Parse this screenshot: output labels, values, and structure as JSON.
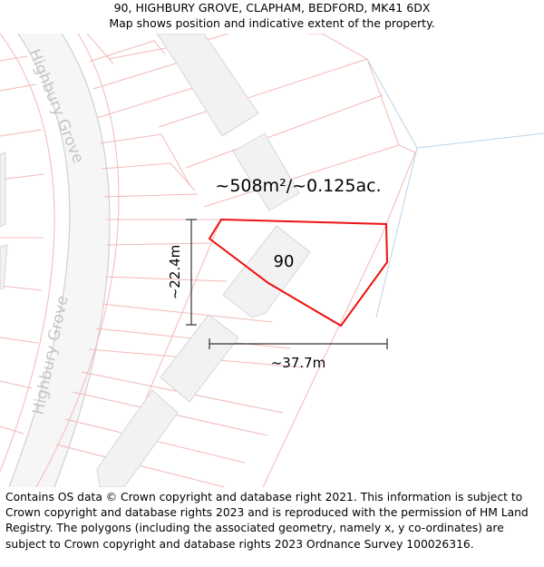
{
  "header": {
    "address": "90, HIGHBURY GROVE, CLAPHAM, BEDFORD, MK41 6DX",
    "subtitle": "Map shows position and indicative extent of the property."
  },
  "map": {
    "area_label": "~508m²/~0.125ac.",
    "plot_number": "90",
    "height_dimension": "~22.4m",
    "width_dimension": "~37.7m",
    "street_labels": [
      "Highbury Grove",
      "Highbury Grove"
    ],
    "colors": {
      "boundary": "#ee1111",
      "plot_lines": "#f4b8b8",
      "buildings": "#f2f2f2",
      "water": "#b8d4ea"
    }
  },
  "footer": {
    "attribution": "Contains OS data © Crown copyright and database right 2021. This information is subject to Crown copyright and database rights 2023 and is reproduced with the permission of HM Land Registry. The polygons (including the associated geometry, namely x, y co-ordinates) are subject to Crown copyright and database rights 2023 Ordnance Survey 100026316."
  }
}
